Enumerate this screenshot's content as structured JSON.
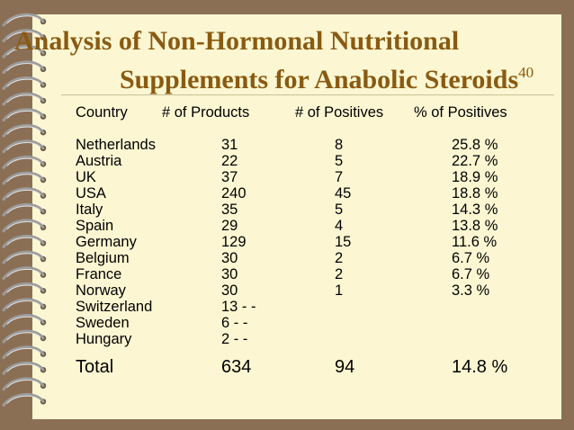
{
  "title": {
    "line1": "Analysis of Non-Hormonal Nutritional",
    "line2": "Supplements for Anabolic Steroids",
    "reference": "40"
  },
  "table": {
    "headers": [
      "Country",
      "# of Products",
      "# of Positives",
      "% of Positives"
    ],
    "rows": [
      [
        "Netherlands",
        "31",
        "8",
        "25.8 %"
      ],
      [
        "Austria",
        "22",
        "5",
        "22.7 %"
      ],
      [
        "UK",
        "37",
        "7",
        "18.9 %"
      ],
      [
        "USA",
        "240",
        "45",
        "18.8 %"
      ],
      [
        "Italy",
        "35",
        "5",
        "14.3 %"
      ],
      [
        "Spain",
        "29",
        "4",
        "13.8 %"
      ],
      [
        "Germany",
        "129",
        "15",
        "11.6 %"
      ],
      [
        "Belgium",
        "30",
        "2",
        "6.7 %"
      ],
      [
        "France",
        "30",
        "2",
        "6.7 %"
      ],
      [
        "Norway",
        "30",
        "1",
        "3.3 %"
      ],
      [
        "Switzerland",
        "13 - -",
        "",
        ""
      ],
      [
        "Sweden",
        "6 - -",
        "",
        ""
      ],
      [
        "Hungary",
        "2 - -",
        "",
        ""
      ]
    ],
    "total": [
      "Total",
      "634",
      "94",
      "14.8 %"
    ]
  },
  "colors": {
    "background": "#8b6f55",
    "page": "#fcf7d2",
    "title": "#8a5a12",
    "spiral": "#a0a0a0"
  },
  "icons": {
    "binding": "spiral-binding-icon"
  }
}
